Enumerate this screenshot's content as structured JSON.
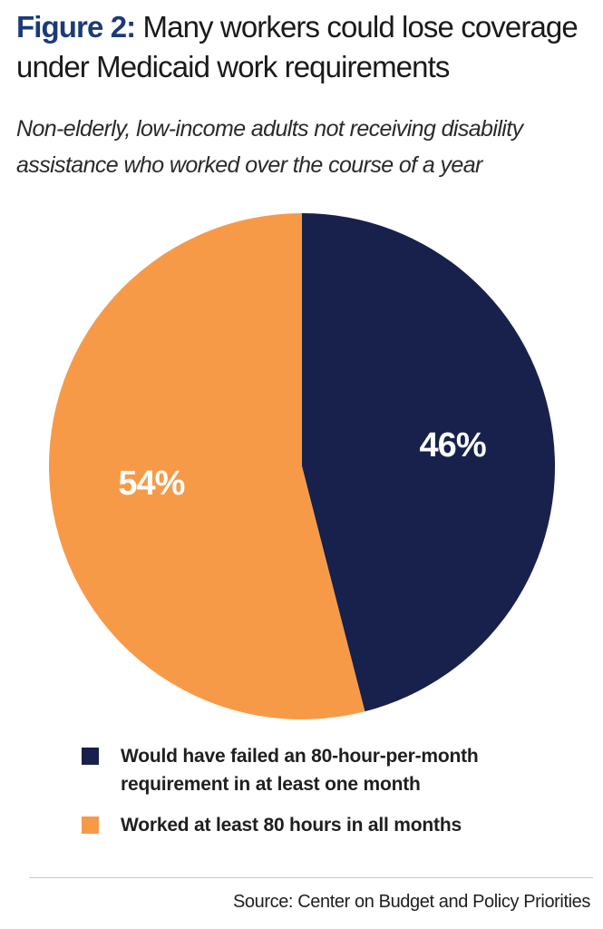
{
  "header": {
    "figure_label": "Figure 2:",
    "title": "Many workers could lose coverage under Medicaid work requirements",
    "subtitle": "Non-elderly, low-income adults not receiving disability assistance who worked over the course of a year"
  },
  "chart_data": {
    "type": "pie",
    "slices": [
      {
        "label": "Would have failed an 80-hour-per-month requirement in at least one month",
        "value": 46,
        "display": "46%",
        "color": "#17214b"
      },
      {
        "label": "Worked at least 80 hours in all months",
        "value": 54,
        "display": "54%",
        "color": "#f79a48"
      }
    ],
    "start": "12 o'clock",
    "direction": "clockwise",
    "legend_position": "bottom"
  },
  "footer": {
    "source": "Source: Center on Budget and Policy Priorities"
  },
  "colors": {
    "title_accent": "#1b3a78",
    "divider": "#c8c8c8"
  }
}
